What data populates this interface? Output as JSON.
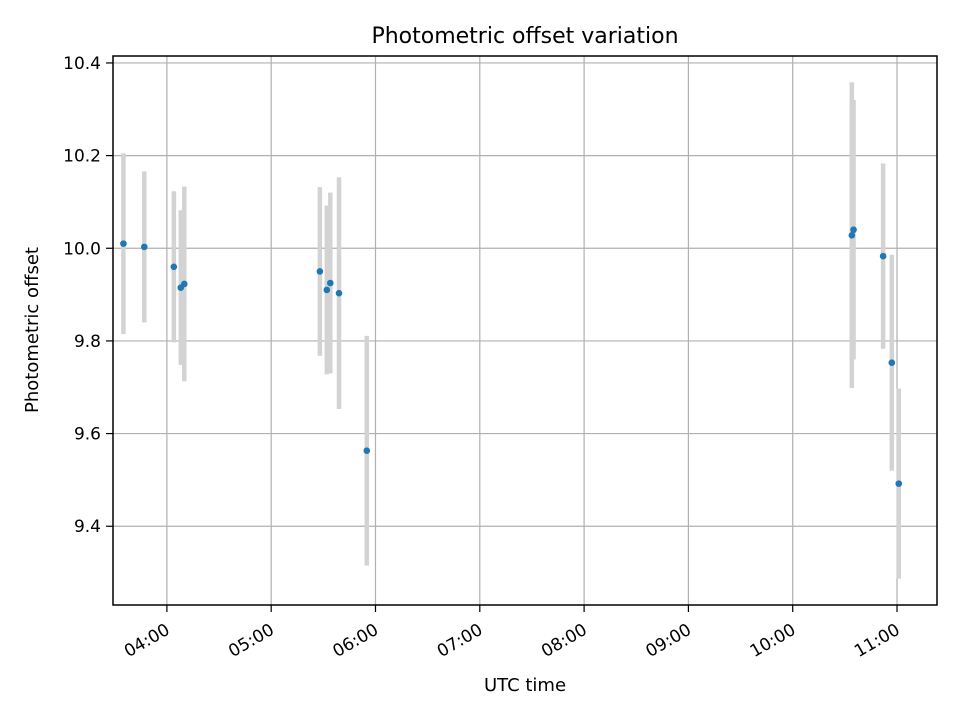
{
  "chart_data": {
    "type": "scatter",
    "title": "Photometric offset variation",
    "xlabel": "UTC time",
    "ylabel": "Photometric offset",
    "x_ticks": [
      "04:00",
      "05:00",
      "06:00",
      "07:00",
      "08:00",
      "09:00",
      "10:00",
      "11:00"
    ],
    "y_ticks": [
      "9.4",
      "9.6",
      "9.8",
      "10.0",
      "10.2",
      "10.4"
    ],
    "xlim": [
      "03:29",
      "11:23"
    ],
    "ylim": [
      9.23,
      10.415
    ],
    "grid": true,
    "errorbar_color": "#d3d3d3",
    "point_color": "#1f77b4",
    "points": [
      {
        "t": "03:35",
        "y": 10.01,
        "err": 0.195
      },
      {
        "t": "03:47",
        "y": 10.003,
        "err": 0.163
      },
      {
        "t": "04:04",
        "y": 9.96,
        "err": 0.163
      },
      {
        "t": "04:08",
        "y": 9.915,
        "err": 0.167
      },
      {
        "t": "04:10",
        "y": 9.923,
        "err": 0.21
      },
      {
        "t": "05:28",
        "y": 9.95,
        "err": 0.182
      },
      {
        "t": "05:32",
        "y": 9.91,
        "err": 0.182
      },
      {
        "t": "05:34",
        "y": 9.925,
        "err": 0.195
      },
      {
        "t": "05:39",
        "y": 9.903,
        "err": 0.25
      },
      {
        "t": "05:55",
        "y": 9.563,
        "err": 0.248
      },
      {
        "t": "10:34",
        "y": 10.028,
        "err": 0.33
      },
      {
        "t": "10:35",
        "y": 10.04,
        "err": 0.28
      },
      {
        "t": "10:52",
        "y": 9.983,
        "err": 0.2
      },
      {
        "t": "10:57",
        "y": 9.753,
        "err": 0.233
      },
      {
        "t": "11:01",
        "y": 9.492,
        "err": 0.205
      }
    ]
  }
}
